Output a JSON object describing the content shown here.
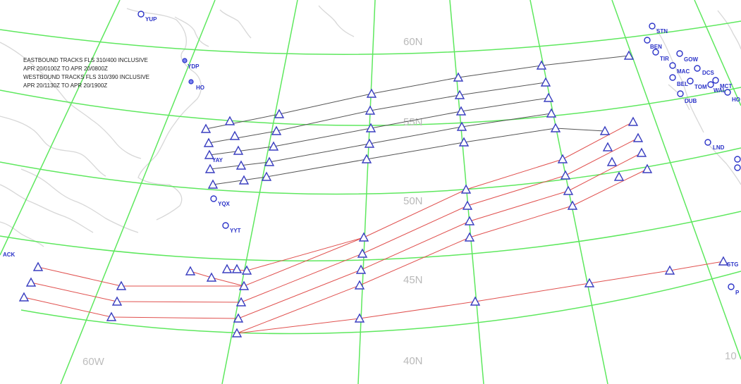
{
  "info_lines": [
    "EASTBOUND TRACKS FLS 310/400 INCLUSIVE",
    "APR 20/0100Z TO APR 20/0800Z",
    "WESTBOUND TRACKS FLS 310/390 INCLUSIVE",
    "APR 20/1130Z TO APR 20/1900Z"
  ],
  "latitude_labels": [
    "60N",
    "55N",
    "50N",
    "45N",
    "40N"
  ],
  "longitude_labels": [
    "60W",
    "10"
  ],
  "airports": {
    "yup": "YUP",
    "ydp": "YDP",
    "ho": "HO",
    "yay": "YAY",
    "yqx": "YQX",
    "yyt": "YYT",
    "ack": "ACK",
    "stn": "STN",
    "ben": "BEN",
    "tir": "TIR",
    "gow": "GOW",
    "mac": "MAC",
    "dcs": "DCS",
    "bel": "BEL",
    "tom": "TOM",
    "mct": "MCT",
    "wal": "WAL",
    "ho_r": "HO",
    "dub": "DUB",
    "lnd": "LND",
    "stg": "STG",
    "p": "P"
  },
  "colors": {
    "eastbound_tracks": "#555555",
    "westbound_tracks": "#e0504e",
    "graticule": "#5ee85e",
    "coastline": "#d7d7d7",
    "waypoint": "#3a3fc0",
    "airport": "#2b33c8"
  },
  "icons": {
    "waypoint": "triangle-icon",
    "airport": "circle-icon"
  }
}
